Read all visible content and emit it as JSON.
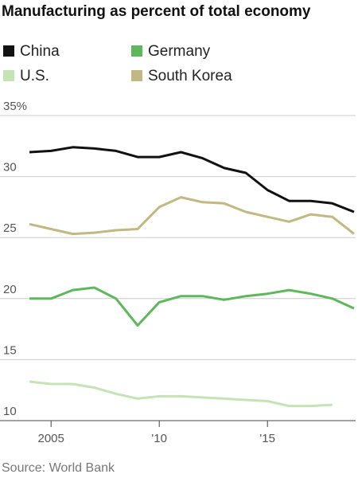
{
  "chart_data": {
    "type": "line",
    "title": "Manufacturing as percent of total economy",
    "source": "Source: World Bank",
    "x": [
      2004,
      2005,
      2006,
      2007,
      2008,
      2009,
      2010,
      2011,
      2012,
      2013,
      2014,
      2015,
      2016,
      2017,
      2018,
      2019
    ],
    "series": [
      {
        "name": "China",
        "color": "#111111",
        "values": [
          32.0,
          32.1,
          32.4,
          32.3,
          32.1,
          31.6,
          31.6,
          32.0,
          31.5,
          30.7,
          30.3,
          28.9,
          28.0,
          28.0,
          27.8,
          27.1
        ]
      },
      {
        "name": "Germany",
        "color": "#5cb85a",
        "values": [
          20.0,
          20.0,
          20.7,
          20.9,
          20.0,
          17.8,
          19.7,
          20.2,
          20.2,
          19.9,
          20.2,
          20.4,
          20.7,
          20.4,
          20.0,
          19.2
        ]
      },
      {
        "name": "U.S.",
        "color": "#c5e3b5",
        "values": [
          13.2,
          13.0,
          13.0,
          12.7,
          12.2,
          11.8,
          12.0,
          12.0,
          11.9,
          11.8,
          11.7,
          11.6,
          11.2,
          11.2,
          11.3,
          null
        ]
      },
      {
        "name": "South Korea",
        "color": "#c2b882",
        "values": [
          26.1,
          25.7,
          25.3,
          25.4,
          25.6,
          25.7,
          27.5,
          28.3,
          27.9,
          27.8,
          27.1,
          26.7,
          26.3,
          26.9,
          26.7,
          25.3
        ]
      }
    ],
    "xlim": [
      2004,
      2019
    ],
    "xticks": [
      2005,
      {
        "value": 2010,
        "label": "'10"
      },
      {
        "value": 2015,
        "label": "'15"
      }
    ],
    "ylim": [
      10,
      35
    ],
    "yticks": [
      10,
      15,
      20,
      25,
      30,
      {
        "value": 35,
        "label": "35%"
      }
    ],
    "grid": true
  }
}
